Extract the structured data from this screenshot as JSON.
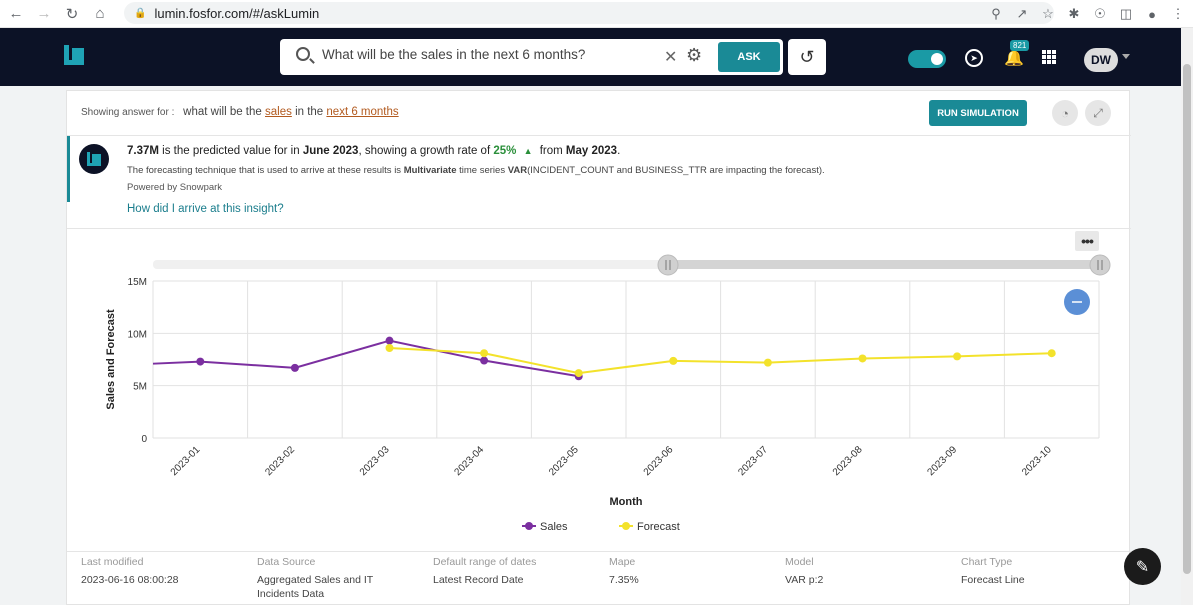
{
  "browser": {
    "url": "lumin.fosfor.com/#/askLumin"
  },
  "header": {
    "search_value": "What will be the sales in the next 6 months?",
    "ask_label": "ASK",
    "notification_count": "821",
    "user_initials": "DW",
    "accent_color": "#1a8a96"
  },
  "answer": {
    "showing_label": "Showing answer for :",
    "query_pre": "what will be the",
    "query_sales": "sales",
    "query_mid": "in the",
    "query_period": "next 6 months",
    "run_simulation_label": "RUN SIMULATION"
  },
  "insight": {
    "value": "7.37M",
    "text1": "is the predicted value for in",
    "month": "June 2023",
    "text2": ", showing a growth rate of",
    "growth": "25%",
    "text3": "from",
    "from_month": "May 2023",
    "text4": ".",
    "sub1": "The forecasting technique that is used to arrive at these results is",
    "technique": "Multivariate",
    "sub2": "time series",
    "model": "VAR",
    "sub3": "(INCIDENT_COUNT and BUSINESS_TTR are impacting the forecast).",
    "powered": "Powered by Snowpark",
    "how_link": "How did I arrive at this insight?"
  },
  "chart_data": {
    "type": "line",
    "categories": [
      "2023-01",
      "2023-02",
      "2023-03",
      "2023-04",
      "2023-05",
      "2023-06",
      "2023-07",
      "2023-08",
      "2023-09",
      "2023-10"
    ],
    "series": [
      {
        "name": "Sales",
        "color": "#7b2fa0",
        "values": [
          7.3,
          6.7,
          9.3,
          7.4,
          5.9,
          null,
          null,
          null,
          null,
          null
        ],
        "start_value": 7.1
      },
      {
        "name": "Forecast",
        "color": "#f3e22b",
        "values": [
          null,
          null,
          8.6,
          8.1,
          6.2,
          7.37,
          7.2,
          7.6,
          7.8,
          8.1
        ]
      }
    ],
    "yticks": [
      "0",
      "5M",
      "10M",
      "15M"
    ],
    "ylim": [
      0,
      15
    ],
    "xlabel": "Month",
    "ylabel": "Sales and Forecast",
    "legend_position": "bottom"
  },
  "meta": [
    {
      "label": "Last modified",
      "value": "2023-06-16 08:00:28"
    },
    {
      "label": "Data Source",
      "value": "Aggregated Sales and IT Incidents Data"
    },
    {
      "label": "Default range of dates",
      "value": "Latest Record Date"
    },
    {
      "label": "Mape",
      "value": "7.35%"
    },
    {
      "label": "Model",
      "value": "VAR p:2"
    },
    {
      "label": "Chart Type",
      "value": "Forecast Line"
    }
  ]
}
